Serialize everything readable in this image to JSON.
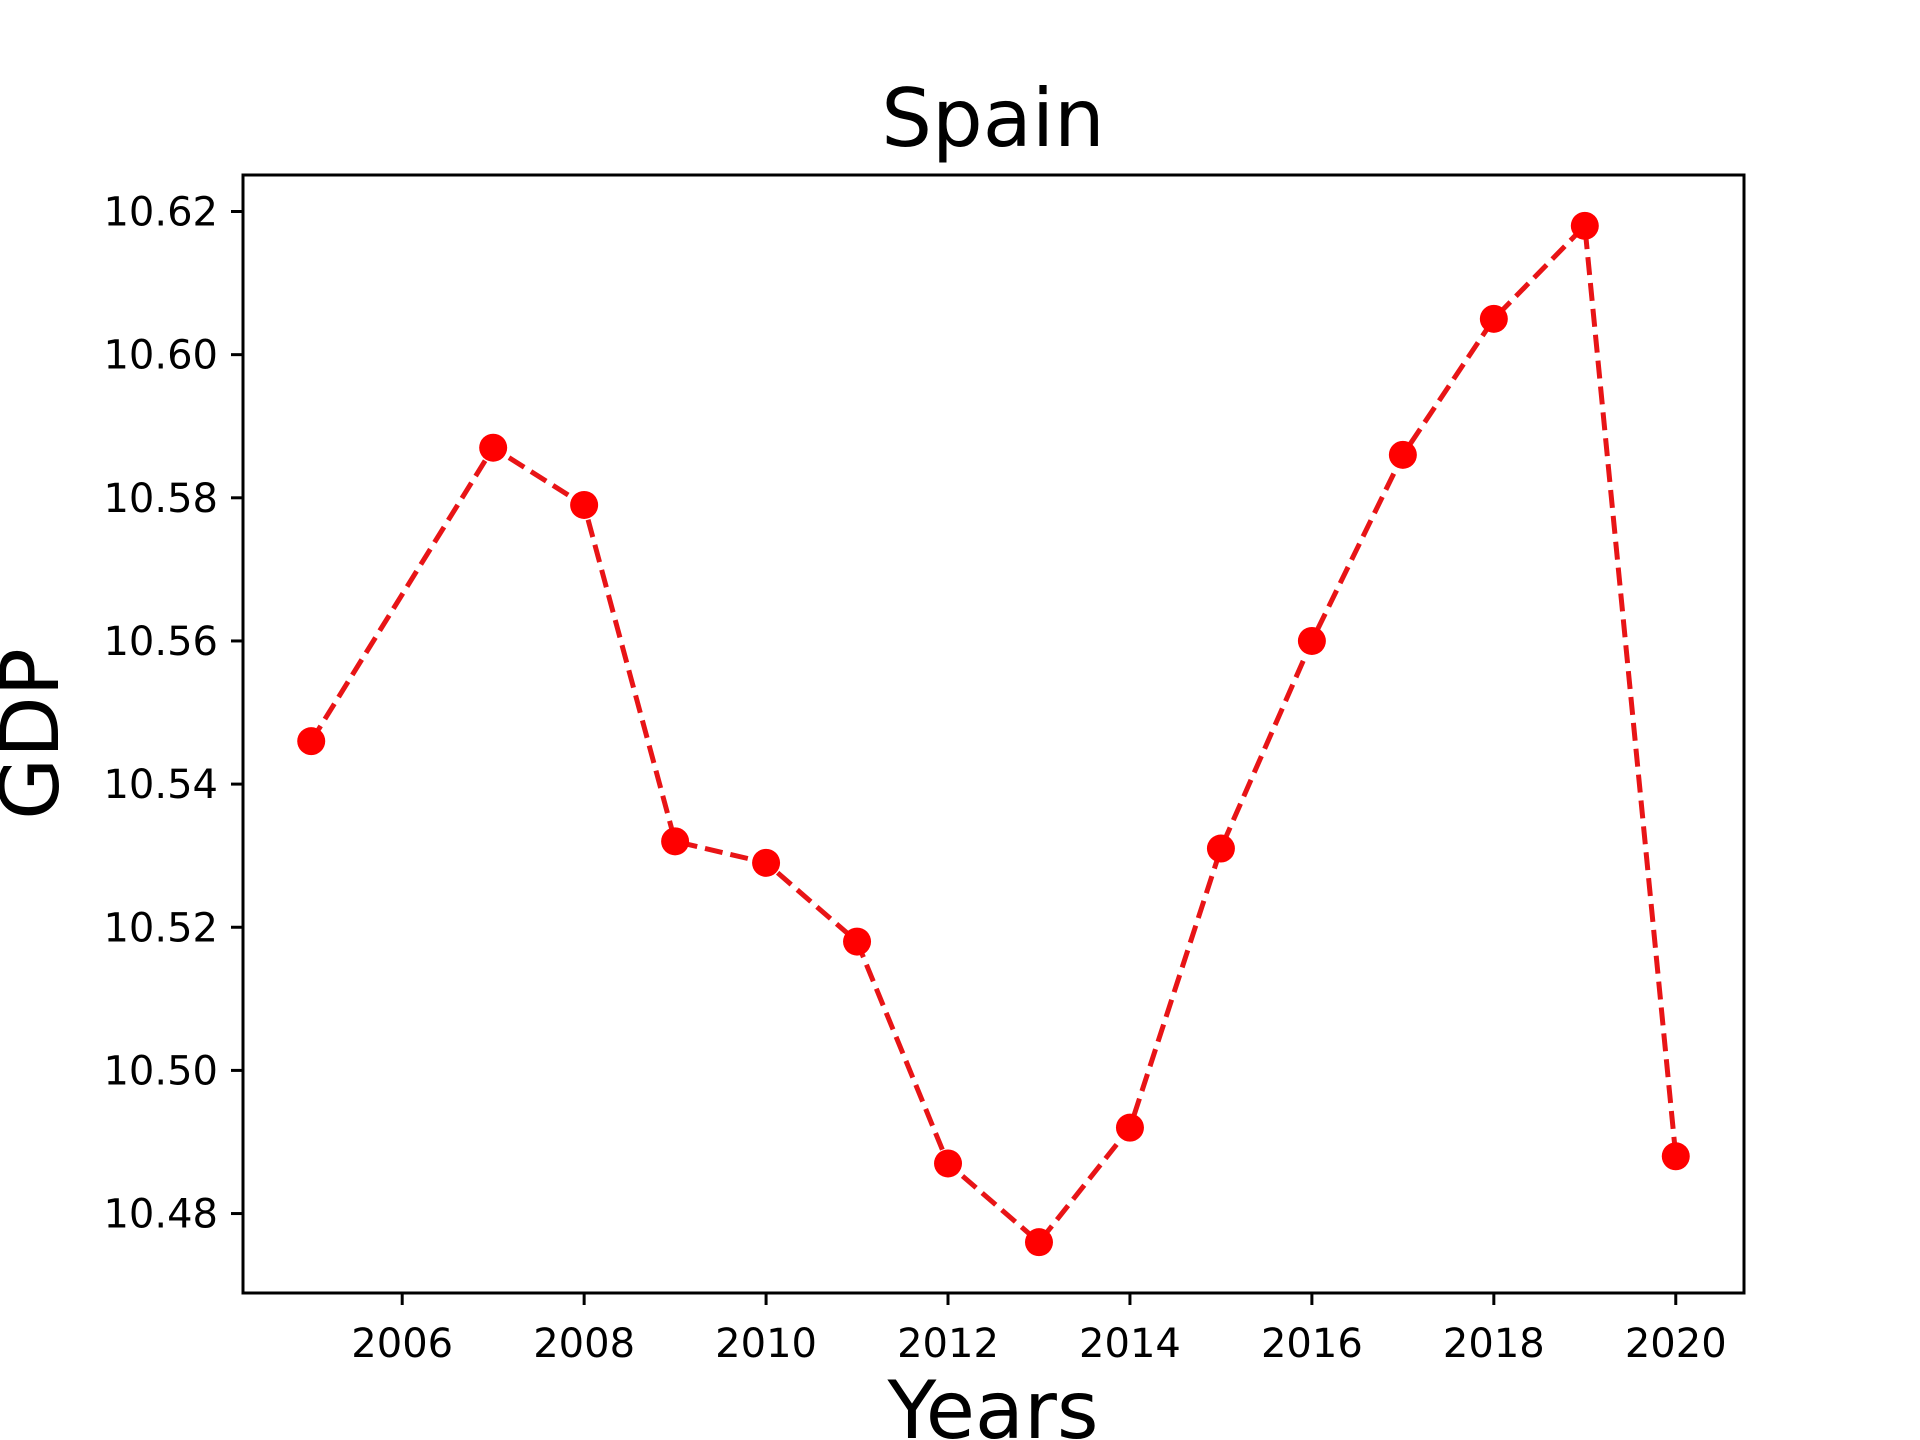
{
  "chart_data": {
    "type": "line",
    "title": "Spain",
    "xlabel": "Years",
    "ylabel": "GDP",
    "x": [
      2005,
      2007,
      2008,
      2009,
      2010,
      2011,
      2012,
      2013,
      2014,
      2015,
      2016,
      2017,
      2018,
      2019,
      2020
    ],
    "series": [
      {
        "values": [
          10.546,
          10.587,
          10.579,
          10.532,
          10.529,
          10.518,
          10.487,
          10.476,
          10.492,
          10.531,
          10.56,
          10.586,
          10.605,
          10.618,
          10.488
        ]
      }
    ],
    "xlim": [
      2004.25,
      2020.75
    ],
    "ylim": [
      10.4689,
      10.6251
    ],
    "x_ticks": [
      2006,
      2008,
      2010,
      2012,
      2014,
      2016,
      2018,
      2020
    ],
    "x_tick_labels": [
      "2006",
      "2008",
      "2010",
      "2012",
      "2014",
      "2016",
      "2018",
      "2020"
    ],
    "y_ticks": [
      10.48,
      10.5,
      10.52,
      10.54,
      10.56,
      10.58,
      10.6,
      10.62
    ],
    "y_tick_labels": [
      "10.48",
      "10.50",
      "10.52",
      "10.54",
      "10.56",
      "10.58",
      "10.60",
      "10.62"
    ],
    "grid": false,
    "line_style": "dashed",
    "marker": "circle",
    "color": "#ff0000",
    "line_color": "#e81416"
  }
}
